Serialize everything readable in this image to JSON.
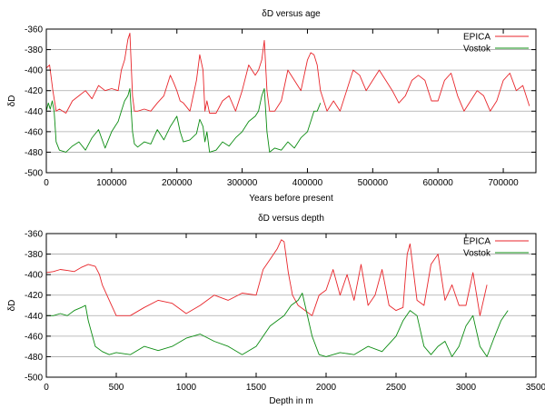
{
  "chart_data": [
    {
      "type": "line",
      "title": "δD versus age",
      "xlabel": "Years before present",
      "ylabel": "δD",
      "xlim": [
        0,
        750000
      ],
      "ylim": [
        -500,
        -360
      ],
      "xticks": [
        0,
        100000,
        200000,
        300000,
        400000,
        500000,
        600000,
        700000
      ],
      "yticks": [
        -500,
        -480,
        -460,
        -440,
        -420,
        -400,
        -380,
        -360
      ],
      "grid": "horizontal",
      "legend_position": "top-right",
      "series": [
        {
          "name": "EPICA",
          "color": "#e8262b",
          "x": [
            0,
            5000,
            10000,
            15000,
            20000,
            30000,
            40000,
            50000,
            60000,
            70000,
            80000,
            90000,
            100000,
            110000,
            115000,
            120000,
            125000,
            128000,
            132000,
            135000,
            140000,
            150000,
            160000,
            170000,
            180000,
            190000,
            195000,
            200000,
            205000,
            210000,
            220000,
            230000,
            235000,
            240000,
            243000,
            246000,
            250000,
            260000,
            270000,
            280000,
            290000,
            300000,
            310000,
            320000,
            325000,
            330000,
            334000,
            338000,
            342000,
            350000,
            360000,
            370000,
            380000,
            390000,
            400000,
            405000,
            410000,
            415000,
            420000,
            430000,
            440000,
            450000,
            460000,
            470000,
            480000,
            490000,
            500000,
            510000,
            520000,
            530000,
            540000,
            550000,
            560000,
            570000,
            580000,
            590000,
            600000,
            610000,
            620000,
            630000,
            640000,
            650000,
            660000,
            670000,
            680000,
            690000,
            700000,
            710000,
            720000,
            730000,
            740000
          ],
          "values": [
            -398,
            -395,
            -420,
            -440,
            -438,
            -442,
            -430,
            -425,
            -420,
            -428,
            -415,
            -420,
            -418,
            -420,
            -400,
            -390,
            -370,
            -364,
            -425,
            -440,
            -440,
            -438,
            -440,
            -432,
            -425,
            -405,
            -412,
            -420,
            -430,
            -432,
            -440,
            -410,
            -385,
            -400,
            -440,
            -430,
            -442,
            -442,
            -430,
            -425,
            -440,
            -420,
            -395,
            -405,
            -400,
            -390,
            -371,
            -420,
            -440,
            -440,
            -430,
            -400,
            -410,
            -420,
            -390,
            -383,
            -385,
            -395,
            -420,
            -440,
            -430,
            -440,
            -420,
            -400,
            -405,
            -420,
            -410,
            -400,
            -410,
            -420,
            -432,
            -425,
            -410,
            -405,
            -410,
            -430,
            -430,
            -410,
            -403,
            -425,
            -440,
            -430,
            -420,
            -425,
            -440,
            -430,
            -410,
            -403,
            -420,
            -415,
            -435
          ]
        },
        {
          "name": "Vostok",
          "color": "#0c8c12",
          "x": [
            0,
            3000,
            6000,
            9000,
            12000,
            15000,
            20000,
            30000,
            40000,
            50000,
            60000,
            70000,
            80000,
            90000,
            100000,
            110000,
            115000,
            120000,
            125000,
            128000,
            132000,
            135000,
            140000,
            150000,
            160000,
            170000,
            180000,
            190000,
            195000,
            200000,
            205000,
            210000,
            220000,
            230000,
            235000,
            240000,
            243000,
            246000,
            250000,
            260000,
            270000,
            280000,
            290000,
            300000,
            310000,
            320000,
            325000,
            330000,
            334000,
            338000,
            342000,
            350000,
            360000,
            370000,
            380000,
            390000,
            400000,
            405000,
            410000,
            415000,
            420000
          ],
          "values": [
            -440,
            -432,
            -438,
            -430,
            -440,
            -470,
            -478,
            -480,
            -474,
            -470,
            -478,
            -466,
            -458,
            -476,
            -460,
            -450,
            -440,
            -430,
            -425,
            -418,
            -460,
            -472,
            -475,
            -470,
            -472,
            -458,
            -468,
            -455,
            -450,
            -445,
            -460,
            -470,
            -468,
            -462,
            -448,
            -455,
            -470,
            -460,
            -480,
            -478,
            -470,
            -474,
            -466,
            -460,
            -450,
            -445,
            -440,
            -425,
            -418,
            -460,
            -480,
            -476,
            -478,
            -470,
            -476,
            -466,
            -460,
            -450,
            -440,
            -440,
            -432
          ]
        }
      ]
    },
    {
      "type": "line",
      "title": "δD versus depth",
      "xlabel": "Depth in m",
      "ylabel": "δD",
      "xlim": [
        0,
        3500
      ],
      "ylim": [
        -500,
        -360
      ],
      "xticks": [
        0,
        500,
        1000,
        1500,
        2000,
        2500,
        3000,
        3500
      ],
      "yticks": [
        -500,
        -480,
        -460,
        -440,
        -420,
        -400,
        -380,
        -360
      ],
      "grid": "horizontal",
      "legend_position": "top-right",
      "series": [
        {
          "name": "EPICA",
          "color": "#e8262b",
          "x": [
            0,
            50,
            100,
            150,
            200,
            250,
            300,
            350,
            380,
            400,
            450,
            500,
            600,
            700,
            800,
            900,
            1000,
            1100,
            1200,
            1300,
            1400,
            1500,
            1550,
            1600,
            1650,
            1680,
            1700,
            1730,
            1760,
            1800,
            1850,
            1900,
            1950,
            2000,
            2050,
            2100,
            2150,
            2200,
            2250,
            2300,
            2350,
            2400,
            2450,
            2500,
            2550,
            2580,
            2600,
            2650,
            2700,
            2750,
            2800,
            2850,
            2900,
            2950,
            3000,
            3050,
            3100,
            3150
          ],
          "values": [
            -398,
            -397,
            -395,
            -396,
            -397,
            -393,
            -390,
            -392,
            -400,
            -410,
            -425,
            -440,
            -440,
            -432,
            -425,
            -428,
            -438,
            -430,
            -420,
            -425,
            -418,
            -420,
            -395,
            -385,
            -375,
            -366,
            -368,
            -398,
            -420,
            -430,
            -435,
            -440,
            -420,
            -415,
            -395,
            -420,
            -400,
            -425,
            -390,
            -430,
            -420,
            -395,
            -430,
            -435,
            -432,
            -380,
            -370,
            -425,
            -430,
            -390,
            -380,
            -425,
            -410,
            -430,
            -430,
            -398,
            -440,
            -410
          ]
        },
        {
          "name": "Vostok",
          "color": "#0c8c12",
          "x": [
            0,
            50,
            100,
            150,
            200,
            250,
            280,
            300,
            350,
            400,
            450,
            500,
            600,
            700,
            800,
            900,
            1000,
            1100,
            1200,
            1300,
            1400,
            1500,
            1550,
            1600,
            1650,
            1700,
            1750,
            1800,
            1830,
            1850,
            1900,
            1950,
            2000,
            2100,
            2200,
            2300,
            2400,
            2500,
            2550,
            2600,
            2650,
            2700,
            2750,
            2800,
            2850,
            2900,
            2950,
            3000,
            3050,
            3100,
            3150,
            3200,
            3250,
            3300
          ],
          "values": [
            -440,
            -440,
            -438,
            -440,
            -435,
            -432,
            -430,
            -445,
            -470,
            -475,
            -478,
            -476,
            -478,
            -470,
            -474,
            -470,
            -462,
            -458,
            -465,
            -470,
            -478,
            -470,
            -460,
            -450,
            -445,
            -440,
            -430,
            -425,
            -418,
            -430,
            -460,
            -478,
            -480,
            -476,
            -478,
            -470,
            -475,
            -460,
            -445,
            -435,
            -440,
            -470,
            -478,
            -470,
            -465,
            -480,
            -470,
            -450,
            -440,
            -470,
            -480,
            -462,
            -445,
            -435
          ]
        }
      ]
    }
  ]
}
